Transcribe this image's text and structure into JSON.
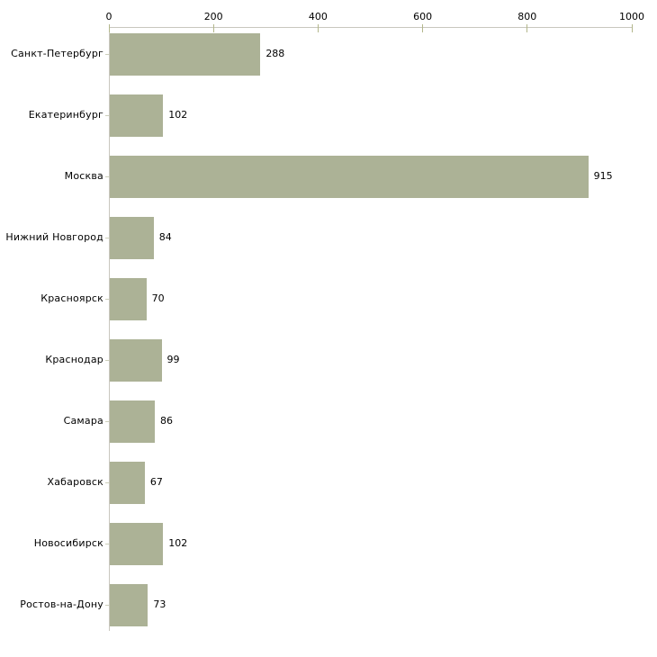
{
  "chart_data": {
    "type": "bar",
    "orientation": "horizontal",
    "title": "",
    "xlabel": "",
    "ylabel": "",
    "categories": [
      "Санкт-Петербург",
      "Екатеринбург",
      "Москва",
      "Нижний Новгород",
      "Красноярск",
      "Краснодар",
      "Самара",
      "Хабаровск",
      "Новосибирск",
      "Ростов-на-Дону"
    ],
    "values": [
      288,
      102,
      915,
      84,
      70,
      99,
      86,
      67,
      102,
      73
    ],
    "xlim": [
      0,
      1000
    ],
    "x_ticks": [
      0,
      200,
      400,
      600,
      800,
      1000
    ],
    "value_labels_shown": true,
    "grid": false,
    "legend": false,
    "axis_position": "top",
    "colors": {
      "bar": "#ACB296",
      "axis_line": "#C9C7BE",
      "x_tick": "#B3B78B",
      "category_tick": "#CDCFBA",
      "text": "#000000",
      "background": "#ffffff"
    }
  }
}
